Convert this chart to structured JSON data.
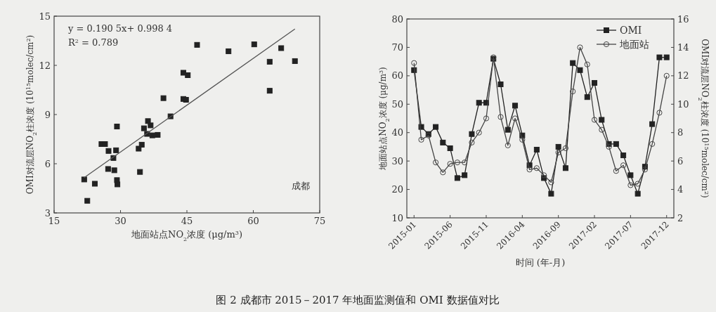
{
  "chart_data": [
    {
      "type": "scatter",
      "xlabel": "地面站点NO$_{2}$浓度 (μg/m$^{3}$)",
      "ylabel": "OMI对流层NO$_{2}$柱浓度 (10$^{15}$molec/cm$^{2}$)",
      "xlim": [
        15,
        75
      ],
      "ylim": [
        3,
        15
      ],
      "xticks": [
        15,
        30,
        45,
        60,
        75
      ],
      "yticks": [
        3,
        6,
        9,
        12,
        15
      ],
      "grid": false,
      "legend": false,
      "annotations": [
        "y = 0.190 5x+ 0.998 4",
        "R$^{2}$ = 0.789",
        "成都"
      ],
      "series": [
        {
          "type": "scatter",
          "marker": "square",
          "color": "#222222",
          "x": [
            21.8,
            22.5,
            24.2,
            25.7,
            26.5,
            27.3,
            27.2,
            28.4,
            28.6,
            29.0,
            29.2,
            29.2,
            29.3,
            34.1,
            34.8,
            34.4,
            35.3,
            36.2,
            36.8,
            36.0,
            37.2,
            38.4,
            39.7,
            41.3,
            44.2,
            45.2,
            44.2,
            44.8,
            47.3,
            54.4,
            60.2,
            63.7,
            63.7,
            66.3,
            69.4
          ],
          "values": [
            5.04,
            3.74,
            4.78,
            7.2,
            7.2,
            6.78,
            5.68,
            6.35,
            5.6,
            6.82,
            8.27,
            5.0,
            4.74,
            6.92,
            7.16,
            5.5,
            8.16,
            8.6,
            8.34,
            7.82,
            7.73,
            7.76,
            10.0,
            8.89,
            11.55,
            11.4,
            9.95,
            9.9,
            13.25,
            12.86,
            13.28,
            12.22,
            10.45,
            13.05,
            12.26
          ]
        },
        {
          "type": "line",
          "marker": "none",
          "color": "#555555",
          "x": [
            21.8,
            69.4
          ],
          "values": [
            5.15,
            14.22
          ]
        }
      ]
    },
    {
      "type": "line",
      "xlabel": "时间 (年-月)",
      "ylabel": "地面站点NO$_{2}$浓度 (μg/m$^{3}$)",
      "y2label": "OMI对流层NO$_{2}$柱浓度 (10$^{15}$molec/cm$^{2}$)",
      "xlim": [
        "2014-12",
        "2018-01"
      ],
      "xticks": [
        "2015-01",
        "2015-06",
        "2015-11",
        "2016-04",
        "2016-09",
        "2017-02",
        "2017-07",
        "2017-12"
      ],
      "ylim": [
        10,
        80
      ],
      "yticks": [
        10,
        20,
        30,
        40,
        50,
        60,
        70,
        80
      ],
      "y2lim": [
        2,
        16
      ],
      "y2ticks": [
        2,
        4,
        6,
        8,
        10,
        12,
        14,
        16
      ],
      "grid": false,
      "legend": "top right",
      "line_style": "solid",
      "annotations": [
        "图 2  成都市 2015－2017 年地面监测值和 OMI 数据值对比"
      ],
      "x": [
        "2015-01",
        "2015-02",
        "2015-03",
        "2015-04",
        "2015-05",
        "2015-06",
        "2015-07",
        "2015-08",
        "2015-09",
        "2015-10",
        "2015-11",
        "2015-12",
        "2016-01",
        "2016-02",
        "2016-03",
        "2016-04",
        "2016-05",
        "2016-06",
        "2016-07",
        "2016-08",
        "2016-09",
        "2016-10",
        "2016-11",
        "2016-12",
        "2017-01",
        "2017-02",
        "2017-03",
        "2017-04",
        "2017-05",
        "2017-06",
        "2017-07",
        "2017-08",
        "2017-09",
        "2017-10",
        "2017-11",
        "2017-12"
      ],
      "series": [
        {
          "name": "OMI",
          "axis": "y2",
          "marker": "square",
          "color": "#222222",
          "values": [
            12.4,
            8.4,
            7.9,
            8.4,
            7.3,
            6.9,
            4.8,
            5.0,
            7.9,
            10.1,
            10.1,
            13.2,
            11.4,
            8.2,
            9.9,
            7.8,
            5.7,
            6.8,
            4.8,
            3.7,
            7.0,
            5.5,
            12.9,
            12.4,
            10.5,
            11.5,
            8.9,
            7.2,
            7.2,
            6.4,
            5.0,
            3.7,
            5.6,
            8.6,
            13.3,
            13.3
          ]
        },
        {
          "name": "地面站",
          "marker": "circle",
          "color": "#444444",
          "values": [
            64.5,
            37.5,
            39,
            29.5,
            26,
            29,
            29.5,
            29.5,
            36.5,
            40,
            45,
            66.5,
            45.5,
            35.5,
            45,
            37.5,
            27,
            27.5,
            25,
            22.5,
            33,
            34.5,
            54.5,
            70,
            64,
            44.5,
            41,
            35,
            26.5,
            28.5,
            21.5,
            22,
            27,
            36,
            47,
            60
          ]
        }
      ]
    }
  ]
}
